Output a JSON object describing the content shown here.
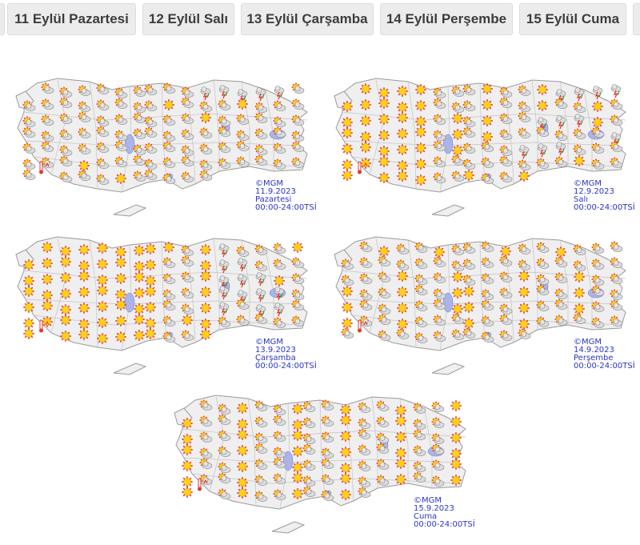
{
  "tabs": [
    {
      "label": "11 Eylül Pazartesi"
    },
    {
      "label": "12 Eylül Salı"
    },
    {
      "label": "13 Eylül Çarşamba"
    },
    {
      "label": "14 Eylül Perşembe"
    },
    {
      "label": "15 Eylül Cuma"
    }
  ],
  "maps": [
    {
      "source": "©MGM",
      "date": "11.9.2023",
      "day": "Pazartesi",
      "hours": "00:00-24:00TSİ",
      "dominant": "partly-cloudy-icon"
    },
    {
      "source": "©MGM",
      "date": "12.9.2023",
      "day": "Salı",
      "hours": "00:00-24:00TSİ",
      "dominant": "sunny-icon"
    },
    {
      "source": "©MGM",
      "date": "13.9.2023",
      "day": "Çarşamba",
      "hours": "00:00-24:00TSİ",
      "dominant": "sunny-icon"
    },
    {
      "source": "©MGM",
      "date": "14.9.2023",
      "day": "Perşembe",
      "hours": "00:00-24:00TSİ",
      "dominant": "partly-cloudy-icon"
    },
    {
      "source": "©MGM",
      "date": "15.9.2023",
      "day": "Cuma",
      "hours": "00:00-24:00TSİ",
      "dominant": "partly-cloudy-icon"
    }
  ],
  "colors": {
    "tab_bg": "#ececec",
    "caption": "#2a35c6",
    "land": "#efefef",
    "border": "#9a9a9a",
    "lake": "#aab4e6",
    "sun": "#ffd21a",
    "sun_ray": "#e3372b",
    "storm": "#2a9a3a"
  }
}
